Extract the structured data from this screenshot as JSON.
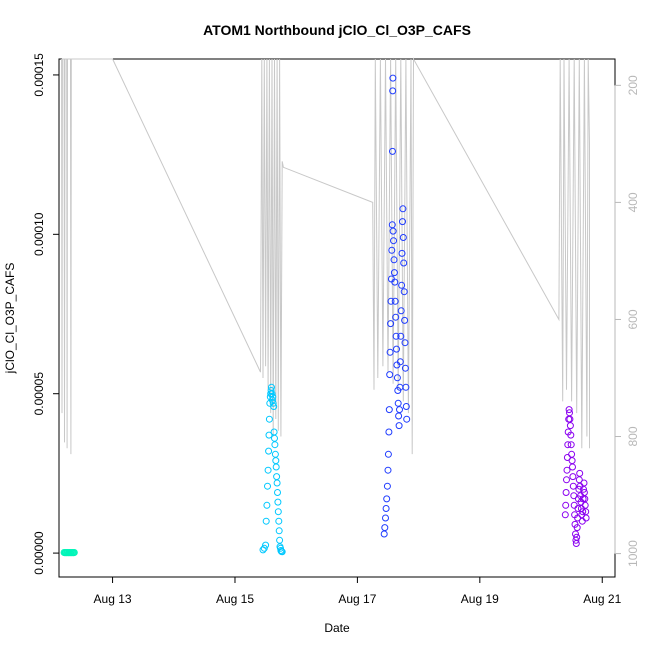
{
  "chart_data": {
    "type": "scatter",
    "title": "ATOM1 Northbound jClO_Cl_O3P_CAFS",
    "xlabel": "Date",
    "ylabel": "jClO_Cl_O3P_CAFS",
    "x_axis": {
      "kind": "date",
      "range": [
        "2016-08-12T03:00",
        "2016-08-21T05:00"
      ],
      "ticks": [
        {
          "value": "2016-08-13",
          "label": "Aug 13"
        },
        {
          "value": "2016-08-15",
          "label": "Aug 15"
        },
        {
          "value": "2016-08-17",
          "label": "Aug 17"
        },
        {
          "value": "2016-08-19",
          "label": "Aug 19"
        },
        {
          "value": "2016-08-21",
          "label": "Aug 21"
        }
      ]
    },
    "y_axis": {
      "range": [
        -7.5e-06,
        0.000155
      ],
      "ticks": [
        {
          "value": 0,
          "label": "0.00000"
        },
        {
          "value": 5e-05,
          "label": "0.00005"
        },
        {
          "value": 0.0001,
          "label": "0.00010"
        },
        {
          "value": 0.00015,
          "label": "0.00015"
        }
      ]
    },
    "y2_axis": {
      "reversed": true,
      "range": [
        1040,
        155
      ],
      "ticks": [
        {
          "value": 200,
          "label": "200"
        },
        {
          "value": 400,
          "label": "400"
        },
        {
          "value": 600,
          "label": "600"
        },
        {
          "value": 800,
          "label": "800"
        },
        {
          "value": 1000,
          "label": "1000"
        }
      ]
    },
    "grid": false,
    "legend": "none",
    "colors": {
      "series1": "#00f5b8",
      "series2": "#00c8ff",
      "series3": "#1f3cff",
      "series4": "#8a00f0",
      "secondary_line": "#c8c8c8"
    },
    "series": [
      {
        "color": "#00f5b8",
        "points": [
          [
            "2016-08-12T05:00",
            2e-07
          ],
          [
            "2016-08-12T05:20",
            1e-07
          ],
          [
            "2016-08-12T05:40",
            2e-07
          ],
          [
            "2016-08-12T06:00",
            1e-07
          ],
          [
            "2016-08-12T06:20",
            2e-07
          ],
          [
            "2016-08-12T06:40",
            1e-07
          ],
          [
            "2016-08-12T07:00",
            2e-07
          ],
          [
            "2016-08-12T07:20",
            1e-07
          ],
          [
            "2016-08-12T07:40",
            2e-07
          ],
          [
            "2016-08-12T08:00",
            1e-07
          ],
          [
            "2016-08-12T08:20",
            2e-07
          ],
          [
            "2016-08-12T08:40",
            1e-07
          ],
          [
            "2016-08-12T09:00",
            2e-07
          ]
        ]
      },
      {
        "color": "#00c8ff",
        "points": [
          [
            "2016-08-15T11:00",
            1e-06
          ],
          [
            "2016-08-15T11:30",
            1.5e-06
          ],
          [
            "2016-08-15T12:00",
            2.5e-06
          ],
          [
            "2016-08-15T12:15",
            1e-05
          ],
          [
            "2016-08-15T12:30",
            1.5e-05
          ],
          [
            "2016-08-15T12:45",
            2.1e-05
          ],
          [
            "2016-08-15T13:00",
            2.6e-05
          ],
          [
            "2016-08-15T13:10",
            3.2e-05
          ],
          [
            "2016-08-15T13:20",
            3.7e-05
          ],
          [
            "2016-08-15T13:30",
            4.2e-05
          ],
          [
            "2016-08-15T13:40",
            4.7e-05
          ],
          [
            "2016-08-15T13:50",
            4.9e-05
          ],
          [
            "2016-08-15T14:00",
            5e-05
          ],
          [
            "2016-08-15T14:10",
            5.1e-05
          ],
          [
            "2016-08-15T14:20",
            5.2e-05
          ],
          [
            "2016-08-15T14:30",
            5e-05
          ],
          [
            "2016-08-15T14:40",
            4.8e-05
          ],
          [
            "2016-08-15T14:50",
            4.9e-05
          ],
          [
            "2016-08-15T15:00",
            4.7e-05
          ],
          [
            "2016-08-15T15:10",
            4.6e-05
          ],
          [
            "2016-08-15T15:20",
            3.8e-05
          ],
          [
            "2016-08-15T15:30",
            3.6e-05
          ],
          [
            "2016-08-15T15:40",
            3.4e-05
          ],
          [
            "2016-08-15T15:50",
            3.1e-05
          ],
          [
            "2016-08-15T16:00",
            2.9e-05
          ],
          [
            "2016-08-15T16:10",
            2.7e-05
          ],
          [
            "2016-08-15T16:20",
            2.4e-05
          ],
          [
            "2016-08-15T16:30",
            2.2e-05
          ],
          [
            "2016-08-15T16:40",
            1.9e-05
          ],
          [
            "2016-08-15T16:50",
            1.6e-05
          ],
          [
            "2016-08-15T17:00",
            1.3e-05
          ],
          [
            "2016-08-15T17:10",
            1e-05
          ],
          [
            "2016-08-15T17:20",
            7e-06
          ],
          [
            "2016-08-15T17:30",
            4e-06
          ],
          [
            "2016-08-15T17:40",
            2e-06
          ],
          [
            "2016-08-15T17:50",
            1.5e-06
          ],
          [
            "2016-08-15T18:00",
            8e-07
          ],
          [
            "2016-08-15T18:15",
            5e-07
          ],
          [
            "2016-08-15T18:30",
            4e-07
          ]
        ]
      },
      {
        "color": "#1f3cff",
        "points": [
          [
            "2016-08-17T10:30",
            6e-06
          ],
          [
            "2016-08-17T10:45",
            8e-06
          ],
          [
            "2016-08-17T11:00",
            1.1e-05
          ],
          [
            "2016-08-17T11:15",
            1.4e-05
          ],
          [
            "2016-08-17T11:30",
            1.7e-05
          ],
          [
            "2016-08-17T11:45",
            2.1e-05
          ],
          [
            "2016-08-17T12:00",
            2.6e-05
          ],
          [
            "2016-08-17T12:10",
            3.1e-05
          ],
          [
            "2016-08-17T12:20",
            3.8e-05
          ],
          [
            "2016-08-17T12:30",
            4.5e-05
          ],
          [
            "2016-08-17T12:40",
            5.6e-05
          ],
          [
            "2016-08-17T12:50",
            6.3e-05
          ],
          [
            "2016-08-17T13:00",
            7.2e-05
          ],
          [
            "2016-08-17T13:10",
            7.9e-05
          ],
          [
            "2016-08-17T13:20",
            8.6e-05
          ],
          [
            "2016-08-17T13:30",
            9.5e-05
          ],
          [
            "2016-08-17T13:40",
            0.000103
          ],
          [
            "2016-08-17T13:45",
            0.000126
          ],
          [
            "2016-08-17T13:50",
            0.000145
          ],
          [
            "2016-08-17T13:55",
            0.000149
          ],
          [
            "2016-08-17T14:00",
            0.000101
          ],
          [
            "2016-08-17T14:10",
            9.8e-05
          ],
          [
            "2016-08-17T14:20",
            9.2e-05
          ],
          [
            "2016-08-17T14:30",
            8.8e-05
          ],
          [
            "2016-08-17T14:40",
            8.5e-05
          ],
          [
            "2016-08-17T14:50",
            7.9e-05
          ],
          [
            "2016-08-17T15:00",
            7.4e-05
          ],
          [
            "2016-08-17T15:10",
            6.8e-05
          ],
          [
            "2016-08-17T15:20",
            6.4e-05
          ],
          [
            "2016-08-17T15:30",
            5.9e-05
          ],
          [
            "2016-08-17T15:40",
            5.5e-05
          ],
          [
            "2016-08-17T15:50",
            5.1e-05
          ],
          [
            "2016-08-17T16:00",
            4.7e-05
          ],
          [
            "2016-08-17T16:10",
            4.3e-05
          ],
          [
            "2016-08-17T16:20",
            4e-05
          ],
          [
            "2016-08-17T16:30",
            4.5e-05
          ],
          [
            "2016-08-17T16:40",
            5.2e-05
          ],
          [
            "2016-08-17T16:50",
            6e-05
          ],
          [
            "2016-08-17T17:00",
            6.8e-05
          ],
          [
            "2016-08-17T17:10",
            7.6e-05
          ],
          [
            "2016-08-17T17:20",
            8.4e-05
          ],
          [
            "2016-08-17T17:30",
            9.4e-05
          ],
          [
            "2016-08-17T17:40",
            0.000104
          ],
          [
            "2016-08-17T17:50",
            0.000108
          ],
          [
            "2016-08-17T18:00",
            9.9e-05
          ],
          [
            "2016-08-17T18:10",
            9.1e-05
          ],
          [
            "2016-08-17T18:20",
            8.2e-05
          ],
          [
            "2016-08-17T18:30",
            7.3e-05
          ],
          [
            "2016-08-17T18:40",
            6.6e-05
          ],
          [
            "2016-08-17T18:50",
            5.8e-05
          ],
          [
            "2016-08-17T19:00",
            5.2e-05
          ],
          [
            "2016-08-17T19:10",
            4.6e-05
          ],
          [
            "2016-08-17T19:20",
            4.2e-05
          ]
        ]
      },
      {
        "color": "#8a00f0",
        "points": [
          [
            "2016-08-20T09:30",
            1.2e-05
          ],
          [
            "2016-08-20T09:40",
            1.5e-05
          ],
          [
            "2016-08-20T09:50",
            1.9e-05
          ],
          [
            "2016-08-20T10:00",
            2.3e-05
          ],
          [
            "2016-08-20T10:10",
            2.6e-05
          ],
          [
            "2016-08-20T10:20",
            3e-05
          ],
          [
            "2016-08-20T10:30",
            3.4e-05
          ],
          [
            "2016-08-20T10:40",
            3.8e-05
          ],
          [
            "2016-08-20T10:50",
            4.2e-05
          ],
          [
            "2016-08-20T11:00",
            4.5e-05
          ],
          [
            "2016-08-20T11:10",
            4.4e-05
          ],
          [
            "2016-08-20T11:20",
            4.2e-05
          ],
          [
            "2016-08-20T11:30",
            4e-05
          ],
          [
            "2016-08-20T11:40",
            3.7e-05
          ],
          [
            "2016-08-20T11:50",
            3.4e-05
          ],
          [
            "2016-08-20T12:00",
            3.1e-05
          ],
          [
            "2016-08-20T12:10",
            2.9e-05
          ],
          [
            "2016-08-20T12:20",
            2.7e-05
          ],
          [
            "2016-08-20T12:30",
            2.4e-05
          ],
          [
            "2016-08-20T12:40",
            2.1e-05
          ],
          [
            "2016-08-20T12:50",
            1.8e-05
          ],
          [
            "2016-08-20T13:00",
            1.5e-05
          ],
          [
            "2016-08-20T13:10",
            1.2e-05
          ],
          [
            "2016-08-20T13:20",
            9e-06
          ],
          [
            "2016-08-20T13:30",
            6e-06
          ],
          [
            "2016-08-20T13:40",
            4e-06
          ],
          [
            "2016-08-20T13:50",
            3e-06
          ],
          [
            "2016-08-20T14:00",
            5e-06
          ],
          [
            "2016-08-20T14:10",
            8e-06
          ],
          [
            "2016-08-20T14:20",
            1.1e-05
          ],
          [
            "2016-08-20T14:30",
            1.4e-05
          ],
          [
            "2016-08-20T14:40",
            1.7e-05
          ],
          [
            "2016-08-20T14:50",
            2e-05
          ],
          [
            "2016-08-20T15:00",
            2.3e-05
          ],
          [
            "2016-08-20T15:10",
            2.5e-05
          ],
          [
            "2016-08-20T15:20",
            2.1e-05
          ],
          [
            "2016-08-20T15:30",
            1.8e-05
          ],
          [
            "2016-08-20T15:40",
            1.6e-05
          ],
          [
            "2016-08-20T15:50",
            1.4e-05
          ],
          [
            "2016-08-20T16:00",
            1.2e-05
          ],
          [
            "2016-08-20T16:10",
            1e-05
          ],
          [
            "2016-08-20T16:20",
            1.3e-05
          ],
          [
            "2016-08-20T16:30",
            1.7e-05
          ],
          [
            "2016-08-20T16:40",
            2e-05
          ],
          [
            "2016-08-20T16:50",
            2.2e-05
          ],
          [
            "2016-08-20T17:00",
            1.9e-05
          ],
          [
            "2016-08-20T17:10",
            1.7e-05
          ],
          [
            "2016-08-20T17:20",
            1.5e-05
          ],
          [
            "2016-08-20T17:30",
            1.3e-05
          ],
          [
            "2016-08-20T17:40",
            1.1e-05
          ]
        ]
      }
    ],
    "secondary_series": {
      "color": "#c8c8c8",
      "type": "line",
      "axis": "y2",
      "points": [
        [
          "2016-08-12T04:00",
          155
        ],
        [
          "2016-08-12T04:10",
          760
        ],
        [
          "2016-08-12T04:20",
          155
        ],
        [
          "2016-08-12T05:00",
          155
        ],
        [
          "2016-08-12T05:10",
          810
        ],
        [
          "2016-08-12T05:20",
          155
        ],
        [
          "2016-08-12T06:00",
          155
        ],
        [
          "2016-08-12T06:10",
          820
        ],
        [
          "2016-08-12T06:20",
          155
        ],
        [
          "2016-08-12T07:30",
          155
        ],
        [
          "2016-08-12T07:40",
          830
        ],
        [
          "2016-08-12T07:50",
          155
        ],
        [
          "2016-08-12T09:00",
          155
        ],
        [
          "2016-08-12T09:10",
          155
        ],
        [
          "2016-08-13T00:00",
          155
        ],
        [
          "2016-08-15T10:00",
          690
        ],
        [
          "2016-08-15T10:30",
          155
        ],
        [
          "2016-08-15T11:00",
          700
        ],
        [
          "2016-08-15T11:30",
          155
        ],
        [
          "2016-08-15T12:00",
          680
        ],
        [
          "2016-08-15T12:30",
          155
        ],
        [
          "2016-08-15T13:00",
          720
        ],
        [
          "2016-08-15T13:30",
          155
        ],
        [
          "2016-08-15T14:00",
          760
        ],
        [
          "2016-08-15T14:30",
          155
        ],
        [
          "2016-08-15T15:00",
          800
        ],
        [
          "2016-08-15T15:30",
          155
        ],
        [
          "2016-08-15T16:00",
          770
        ],
        [
          "2016-08-15T16:30",
          155
        ],
        [
          "2016-08-15T17:00",
          790
        ],
        [
          "2016-08-15T17:30",
          155
        ],
        [
          "2016-08-15T18:00",
          800
        ],
        [
          "2016-08-15T18:30",
          330
        ],
        [
          "2016-08-15T19:00",
          340
        ],
        [
          "2016-08-17T06:00",
          400
        ],
        [
          "2016-08-17T06:30",
          720
        ],
        [
          "2016-08-17T07:00",
          155
        ],
        [
          "2016-08-17T08:00",
          700
        ],
        [
          "2016-08-17T09:00",
          155
        ],
        [
          "2016-08-17T10:00",
          680
        ],
        [
          "2016-08-17T11:00",
          155
        ],
        [
          "2016-08-17T12:00",
          690
        ],
        [
          "2016-08-17T13:00",
          155
        ],
        [
          "2016-08-17T14:00",
          710
        ],
        [
          "2016-08-17T15:00",
          155
        ],
        [
          "2016-08-17T16:00",
          720
        ],
        [
          "2016-08-17T17:00",
          155
        ],
        [
          "2016-08-17T18:00",
          740
        ],
        [
          "2016-08-17T19:00",
          155
        ],
        [
          "2016-08-17T20:00",
          760
        ],
        [
          "2016-08-17T21:00",
          155
        ],
        [
          "2016-08-17T21:30",
          830
        ],
        [
          "2016-08-17T22:00",
          155
        ],
        [
          "2016-08-20T07:00",
          600
        ],
        [
          "2016-08-20T07:30",
          155
        ],
        [
          "2016-08-20T08:30",
          740
        ],
        [
          "2016-08-20T09:00",
          155
        ],
        [
          "2016-08-20T10:00",
          720
        ],
        [
          "2016-08-20T11:00",
          155
        ],
        [
          "2016-08-20T12:00",
          740
        ],
        [
          "2016-08-20T13:00",
          155
        ],
        [
          "2016-08-20T14:00",
          760
        ],
        [
          "2016-08-20T15:00",
          155
        ],
        [
          "2016-08-20T16:00",
          820
        ],
        [
          "2016-08-20T17:00",
          155
        ],
        [
          "2016-08-20T18:00",
          800
        ],
        [
          "2016-08-20T18:30",
          155
        ],
        [
          "2016-08-20T19:00",
          300
        ],
        [
          "2016-08-20T19:00",
          820
        ]
      ]
    }
  }
}
